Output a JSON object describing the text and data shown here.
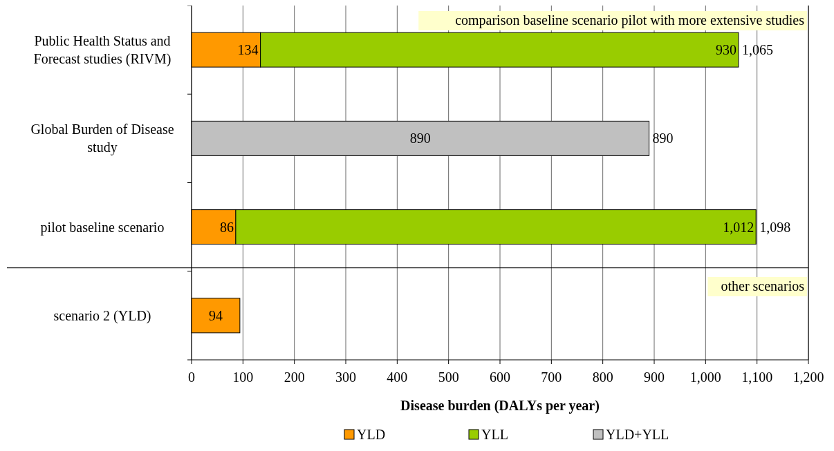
{
  "chart_data": {
    "type": "bar",
    "orientation": "horizontal",
    "stacked": true,
    "xlabel": "Disease burden (DALYs per year)",
    "categories": [
      "Public Health Status and Forecast studies (RIVM)",
      "Global Burden of Disease study",
      "pilot baseline scenario",
      "scenario 2 (YLD)"
    ],
    "series": [
      {
        "name": "YLD",
        "color": "#ff9900",
        "values": [
          134,
          null,
          86,
          94
        ],
        "value_labels": [
          "134",
          null,
          "86",
          "94"
        ]
      },
      {
        "name": "YLL",
        "color": "#99cc00",
        "values": [
          930,
          null,
          1012,
          null
        ],
        "value_labels": [
          "930",
          null,
          "1,012",
          null
        ]
      },
      {
        "name": "YLD+YLL",
        "color": "#c0c0c0",
        "values": [
          null,
          890,
          null,
          null
        ],
        "value_labels": [
          null,
          "890",
          null,
          null
        ]
      }
    ],
    "totals": [
      "1,065",
      "890",
      "1,098",
      null
    ],
    "xlim": [
      0,
      1200
    ],
    "xticks": [
      0,
      100,
      200,
      300,
      400,
      500,
      600,
      700,
      800,
      900,
      {
        "value": 1000,
        "label": "1,000"
      },
      {
        "value": 1100,
        "label": "1,100"
      },
      {
        "value": 1200,
        "label": "1,200"
      }
    ],
    "grid": "x",
    "legend": "bottom",
    "ref_lines": [
      {
        "axis": "y",
        "value": "scenario 2 (YLD)",
        "color": "#000000"
      }
    ],
    "annotations": [
      "comparison baseline scenario pilot with more extensive studies",
      "other scenarios"
    ]
  }
}
